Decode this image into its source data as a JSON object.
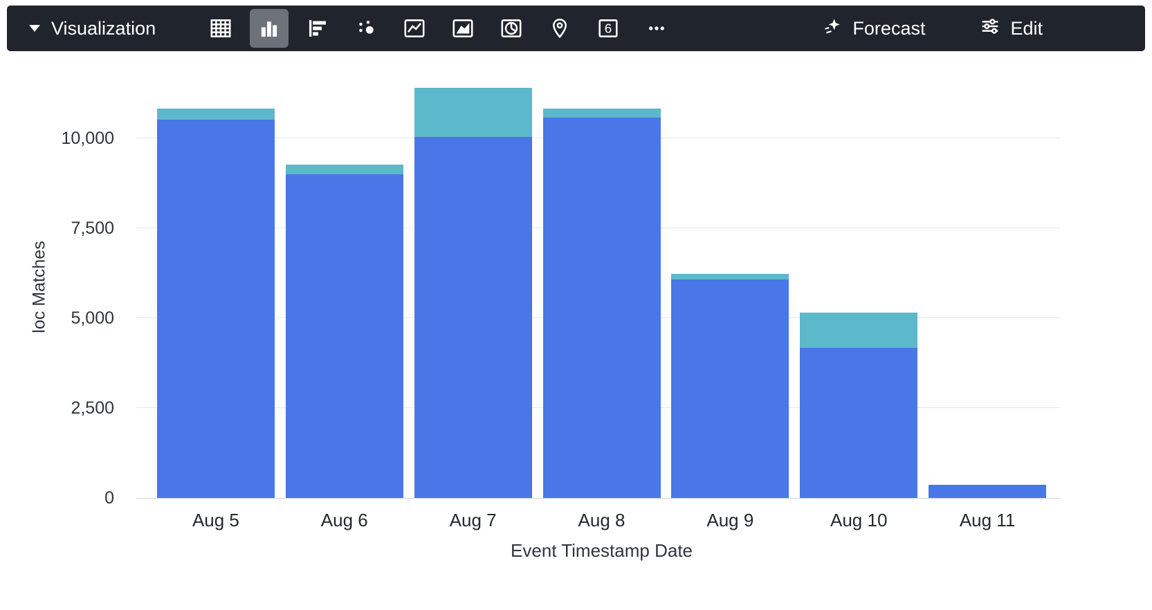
{
  "toolbar": {
    "visualization_label": "Visualization",
    "forecast_label": "Forecast",
    "edit_label": "Edit",
    "single_value_text": "6",
    "icons": [
      "table-icon",
      "column-chart-icon",
      "bar-chart-icon",
      "scatter-chart-icon",
      "line-chart-icon",
      "area-chart-icon",
      "pie-chart-icon",
      "map-pin-icon",
      "single-value-icon",
      "more-icon"
    ],
    "selected_icon": "column-chart-icon",
    "colors": {
      "toolbar_bg": "#20242d",
      "selected_button_bg": "#6d727a",
      "icon_color": "#ffffff"
    }
  },
  "chart_data": {
    "type": "bar",
    "stacked": true,
    "title": "",
    "xlabel": "Event Timestamp Date",
    "ylabel": "loc Matches",
    "categories": [
      "Aug 5",
      "Aug 6",
      "Aug 7",
      "Aug 8",
      "Aug 9",
      "Aug 10",
      "Aug 11"
    ],
    "series": [
      {
        "name": "blue",
        "color": "#4a77e8",
        "values": [
          10520,
          9000,
          10040,
          10580,
          6080,
          4170,
          370
        ]
      },
      {
        "name": "teal",
        "color": "#5cb8cb",
        "values": [
          310,
          270,
          1360,
          250,
          150,
          990,
          0
        ]
      }
    ],
    "totals": [
      10830,
      9270,
      11400,
      10830,
      6230,
      5160,
      370
    ],
    "yticks": [
      0,
      2500,
      5000,
      7500,
      10000
    ],
    "ytick_labels": [
      "0",
      "2,500",
      "5,000",
      "7,500",
      "10,000"
    ],
    "ylim": [
      0,
      11730
    ],
    "grid": true,
    "legend": false
  }
}
